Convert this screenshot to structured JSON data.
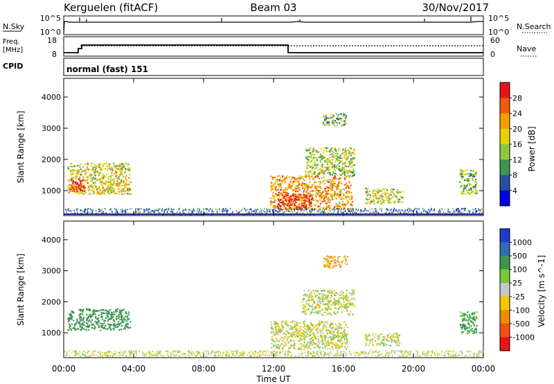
{
  "header": {
    "station": "Kerguelen (fitACF)",
    "beam": "Beam 03",
    "date": "30/Nov/2017"
  },
  "top_panels": {
    "nsky": {
      "left_label": "N.Sky",
      "ticks_left": [
        "10^5",
        "10^0"
      ],
      "ticks_right": [
        "10^5",
        "10^0"
      ],
      "right_label": "N.Search"
    },
    "freq": {
      "left_label_1": "Freq.",
      "left_label_2": "[MHz]",
      "ticks_left": [
        "18",
        "8"
      ],
      "ticks_right": [
        "60",
        "0"
      ],
      "right_label": "Nave"
    },
    "cpid": {
      "left_label": "CPID",
      "mode_text": "normal (fast) 151"
    }
  },
  "power_panel": {
    "ylabel": "Slant Range [km]",
    "colorbar_label": "Power [dB]",
    "colorbar_ticks": [
      "28",
      "24",
      "20",
      "16",
      "12",
      "8",
      "4"
    ],
    "colorbar_colors": [
      "#e8141a",
      "#f05a0a",
      "#f5a000",
      "#e8d200",
      "#8cc83c",
      "#3c9650",
      "#2850a0",
      "#0000e6"
    ]
  },
  "velocity_panel": {
    "ylabel": "Slant Range [km]",
    "colorbar_label": "Velocity [m s^-1]",
    "colorbar_ticks": [
      "1000",
      "500",
      "100",
      "25",
      "-25",
      "-100",
      "-500",
      "-1000"
    ],
    "colorbar_colors": [
      "#1e3cc8",
      "#2d6eb4",
      "#3c9650",
      "#78c83c",
      "#c8c8c8",
      "#f0c800",
      "#f08c00",
      "#f05014",
      "#e61414"
    ]
  },
  "x_axis": {
    "label": "Time UT",
    "ticks": [
      "00:00",
      "04:00",
      "08:00",
      "12:00",
      "16:00",
      "20:00",
      "00:00"
    ]
  },
  "chart_data": {
    "type": "heatmap",
    "title": "Kerguelen (fitACF)",
    "xlabel": "Time UT",
    "ylabel": "Slant Range [km]",
    "xlim": [
      0,
      24
    ],
    "ylim": [
      200,
      4600
    ],
    "y_ticks": [
      1000,
      2000,
      3000,
      4000
    ],
    "freq_MHz": {
      "x": [
        0,
        0.1,
        1,
        13
      ],
      "y": [
        8,
        10,
        12,
        8
      ]
    },
    "power_patches": [
      {
        "t": [
          0.2,
          3.8
        ],
        "r": [
          900,
          1900
        ],
        "dB": 16
      },
      {
        "t": [
          0.3,
          1.2
        ],
        "r": [
          1000,
          1400
        ],
        "dB": 26
      },
      {
        "t": [
          11.8,
          16.5
        ],
        "r": [
          400,
          1500
        ],
        "dB": 20
      },
      {
        "t": [
          12.2,
          14.2
        ],
        "r": [
          400,
          900
        ],
        "dB": 27
      },
      {
        "t": [
          13.8,
          16.6
        ],
        "r": [
          1500,
          2400
        ],
        "dB": 13
      },
      {
        "t": [
          14.8,
          16.2
        ],
        "r": [
          3100,
          3500
        ],
        "dB": 10
      },
      {
        "t": [
          17.2,
          19.4
        ],
        "r": [
          600,
          1100
        ],
        "dB": 14
      },
      {
        "t": [
          22.6,
          23.6
        ],
        "r": [
          900,
          1700
        ],
        "dB": 11
      },
      {
        "t": [
          0,
          24
        ],
        "r": [
          250,
          450
        ],
        "dB": 6
      }
    ],
    "velocity_patches": [
      {
        "t": [
          0.2,
          3.8
        ],
        "r": [
          1100,
          1800
        ],
        "v": 200
      },
      {
        "t": [
          11.8,
          16.2
        ],
        "r": [
          500,
          1400
        ],
        "v": 0
      },
      {
        "t": [
          13.6,
          16.6
        ],
        "r": [
          1600,
          2400
        ],
        "v": 0
      },
      {
        "t": [
          14.8,
          16.2
        ],
        "r": [
          3100,
          3500
        ],
        "v": -100
      },
      {
        "t": [
          17.2,
          19.2
        ],
        "r": [
          600,
          1000
        ],
        "v": 0
      },
      {
        "t": [
          22.6,
          23.6
        ],
        "r": [
          1000,
          1700
        ],
        "v": 150
      },
      {
        "t": [
          0,
          24
        ],
        "r": [
          250,
          450
        ],
        "v": 0
      }
    ]
  }
}
